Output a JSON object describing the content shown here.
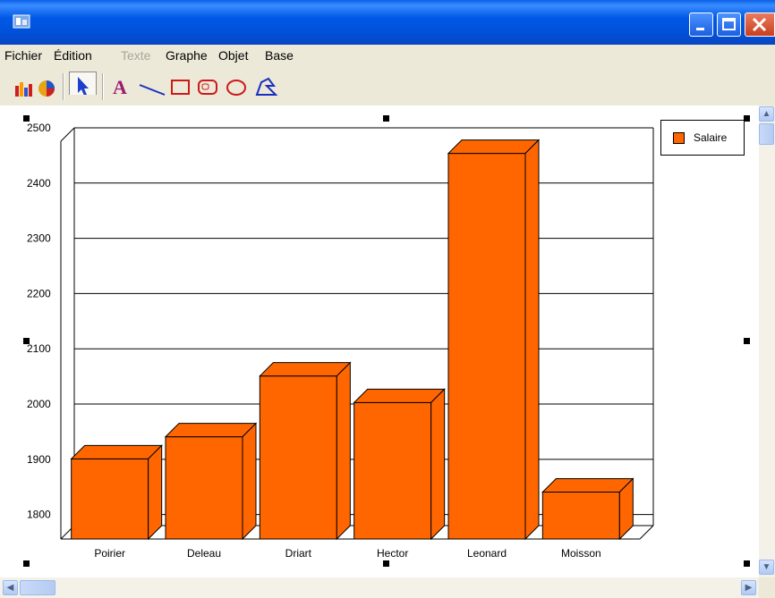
{
  "menu": {
    "items": [
      {
        "label": "Fichier",
        "enabled": true
      },
      {
        "label": "Édition",
        "enabled": true
      },
      {
        "label": "Texte",
        "enabled": false
      },
      {
        "label": "Graphe",
        "enabled": true
      },
      {
        "label": "Objet",
        "enabled": true
      },
      {
        "label": "Base",
        "enabled": true
      }
    ]
  },
  "toolbar": {
    "tools": [
      "graph-style-icon",
      "arrow-pointer-icon",
      "text-tool-icon",
      "line-tool-icon",
      "rectangle-tool-icon",
      "rounded-rectangle-tool-icon",
      "oval-tool-icon",
      "polygon-tool-icon"
    ],
    "selected": "arrow-pointer-icon"
  },
  "colors": {
    "bar": "#ff6600",
    "bar_top": "#ff6600",
    "title_bar": "#0058e6"
  },
  "chart_data": {
    "type": "bar",
    "categories": [
      "Poirier",
      "Deleau",
      "Driart",
      "Hector",
      "Leonard",
      "Moisson"
    ],
    "series": [
      {
        "name": "Salaire",
        "values": [
          1925,
          1965,
          2075,
          2027,
          2478,
          1865
        ]
      }
    ],
    "ylim": [
      1780,
      2500
    ],
    "yticks": [
      1800,
      1900,
      2000,
      2100,
      2200,
      2300,
      2400,
      2500
    ],
    "grid": true,
    "three_d": true,
    "legend_position": "top-right"
  }
}
